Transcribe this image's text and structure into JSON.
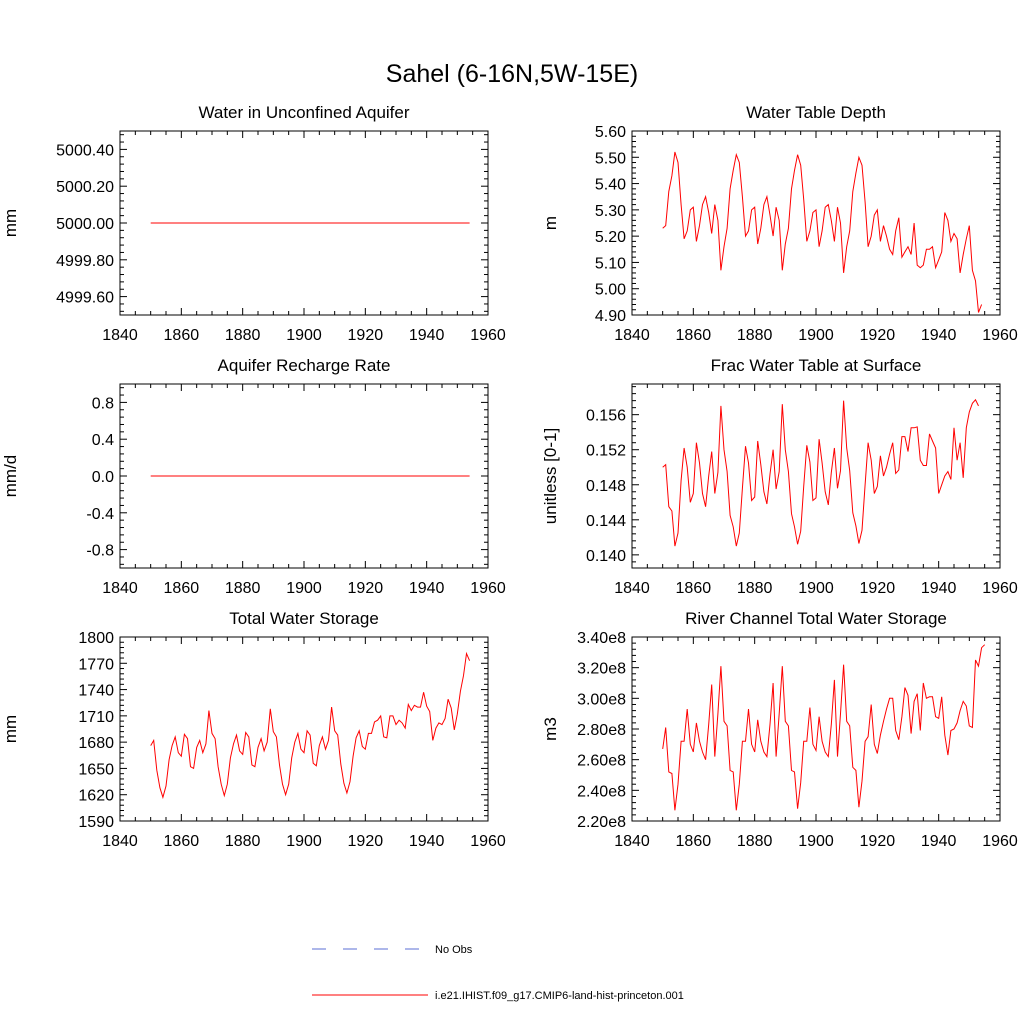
{
  "title": "Sahel (6-16N,5W-15E)",
  "colors": {
    "model": "#ff0000",
    "obs": "#5b6fd6",
    "axis": "#000000"
  },
  "legend": {
    "placement": "bottom-center",
    "items": [
      {
        "label": "No Obs",
        "style": "dashed",
        "color": "#5b6fd6"
      },
      {
        "label": "i.e21.IHIST.f09_g17.CMIP6-land-hist-princeton.001",
        "style": "solid",
        "color": "#ff0000"
      }
    ]
  },
  "chart_data": [
    {
      "type": "line",
      "title": "Water in Unconfined Aquifer",
      "ylabel": "mm",
      "xlabel": "",
      "xlim": [
        1840,
        1960
      ],
      "xticks": [
        1840,
        1860,
        1880,
        1900,
        1920,
        1940,
        1960
      ],
      "xtick_labels": [
        "1840",
        "1860",
        "1880",
        "1900",
        "1920",
        "1940",
        "1960"
      ],
      "ylim": [
        4999.5,
        5000.5
      ],
      "yticks": [
        4999.6,
        4999.8,
        5000.0,
        5000.2,
        5000.4
      ],
      "ytick_labels": [
        "4999.60",
        "4999.80",
        "5000.00",
        "5000.20",
        "5000.40"
      ],
      "series": [
        {
          "start_year": 1850,
          "values": [
            5000.0,
            5000.0
          ],
          "end_year": 1954
        }
      ]
    },
    {
      "type": "line",
      "title": "Water Table Depth",
      "ylabel": "m",
      "xlabel": "",
      "xlim": [
        1840,
        1960
      ],
      "xticks": [
        1840,
        1860,
        1880,
        1900,
        1920,
        1940,
        1960
      ],
      "xtick_labels": [
        "1840",
        "1860",
        "1880",
        "1900",
        "1920",
        "1940",
        "1960"
      ],
      "ylim": [
        4.9,
        5.6
      ],
      "yticks": [
        4.9,
        5.0,
        5.1,
        5.2,
        5.3,
        5.4,
        5.5,
        5.6
      ],
      "ytick_labels": [
        "4.90",
        "5.00",
        "5.10",
        "5.20",
        "5.30",
        "5.40",
        "5.50",
        "5.60"
      ],
      "series": [
        {
          "start_year": 1850,
          "values": [
            5.23,
            5.24,
            5.37,
            5.43,
            5.52,
            5.48,
            5.32,
            5.19,
            5.22,
            5.3,
            5.31,
            5.18,
            5.24,
            5.32,
            5.35,
            5.29,
            5.21,
            5.32,
            5.26,
            5.07,
            5.16,
            5.23,
            5.38,
            5.45,
            5.51,
            5.48,
            5.35,
            5.2,
            5.22,
            5.3,
            5.31,
            5.17,
            5.23,
            5.32,
            5.35,
            5.28,
            5.2,
            5.31,
            5.26,
            5.07,
            5.17,
            5.23,
            5.38,
            5.45,
            5.51,
            5.47,
            5.34,
            5.18,
            5.22,
            5.29,
            5.3,
            5.16,
            5.22,
            5.31,
            5.32,
            5.26,
            5.18,
            5.31,
            5.25,
            5.06,
            5.16,
            5.22,
            5.37,
            5.44,
            5.5,
            5.47,
            5.33,
            5.16,
            5.2,
            5.28,
            5.3,
            5.18,
            5.24,
            5.2,
            5.15,
            5.13,
            5.22,
            5.27,
            5.12,
            5.14,
            5.16,
            5.13,
            5.25,
            5.09,
            5.08,
            5.09,
            5.15,
            5.15,
            5.16,
            5.08,
            5.11,
            5.14,
            5.29,
            5.26,
            5.18,
            5.21,
            5.19,
            5.06,
            5.13,
            5.19,
            5.24,
            5.07,
            5.03,
            4.91,
            4.94
          ]
        }
      ]
    },
    {
      "type": "line",
      "title": "Aquifer Recharge Rate",
      "ylabel": "mm/d",
      "xlabel": "",
      "xlim": [
        1840,
        1960
      ],
      "xticks": [
        1840,
        1860,
        1880,
        1900,
        1920,
        1940,
        1960
      ],
      "xtick_labels": [
        "1840",
        "1860",
        "1880",
        "1900",
        "1920",
        "1940",
        "1960"
      ],
      "ylim": [
        -1.0,
        1.0
      ],
      "yticks": [
        -0.8,
        -0.4,
        0.0,
        0.4,
        0.8
      ],
      "ytick_labels": [
        "-0.8",
        "-0.4",
        "0.0",
        "0.4",
        "0.8"
      ],
      "series": [
        {
          "start_year": 1850,
          "values": [
            0.0,
            0.0
          ],
          "end_year": 1954
        }
      ]
    },
    {
      "type": "line",
      "title": "Frac Water Table at Surface",
      "ylabel": "unitless [0-1]",
      "xlabel": "",
      "xlim": [
        1840,
        1960
      ],
      "xticks": [
        1840,
        1860,
        1880,
        1900,
        1920,
        1940,
        1960
      ],
      "xtick_labels": [
        "1840",
        "1860",
        "1880",
        "1900",
        "1920",
        "1940",
        "1960"
      ],
      "ylim": [
        0.1385,
        0.1595
      ],
      "yticks": [
        0.14,
        0.144,
        0.148,
        0.152,
        0.156
      ],
      "ytick_labels": [
        "0.140",
        "0.144",
        "0.148",
        "0.152",
        "0.156"
      ],
      "series": [
        {
          "start_year": 1850,
          "values": [
            0.15,
            0.1503,
            0.1455,
            0.145,
            0.141,
            0.1425,
            0.1485,
            0.1522,
            0.15,
            0.146,
            0.147,
            0.1528,
            0.1505,
            0.147,
            0.1455,
            0.149,
            0.1518,
            0.147,
            0.1494,
            0.157,
            0.152,
            0.1495,
            0.1445,
            0.1432,
            0.141,
            0.1425,
            0.1476,
            0.1524,
            0.1505,
            0.1462,
            0.1466,
            0.153,
            0.1503,
            0.1472,
            0.1458,
            0.1492,
            0.152,
            0.1475,
            0.1495,
            0.1572,
            0.152,
            0.1495,
            0.1447,
            0.1432,
            0.1412,
            0.1427,
            0.1478,
            0.1525,
            0.1506,
            0.1462,
            0.1465,
            0.1532,
            0.1505,
            0.1472,
            0.1457,
            0.1494,
            0.1522,
            0.1476,
            0.1496,
            0.1576,
            0.1522,
            0.1496,
            0.1448,
            0.1433,
            0.1413,
            0.1428,
            0.148,
            0.1528,
            0.1508,
            0.147,
            0.1478,
            0.1513,
            0.149,
            0.15,
            0.1515,
            0.1528,
            0.1493,
            0.1497,
            0.1535,
            0.1535,
            0.1518,
            0.1545,
            0.1545,
            0.1546,
            0.1508,
            0.1502,
            0.1502,
            0.1538,
            0.153,
            0.1522,
            0.147,
            0.148,
            0.149,
            0.1495,
            0.1486,
            0.1545,
            0.1508,
            0.1528,
            0.1488,
            0.1545,
            0.1563,
            0.1573,
            0.1577,
            0.157
          ]
        }
      ]
    },
    {
      "type": "line",
      "title": "Total Water Storage",
      "ylabel": "mm",
      "xlabel": "",
      "xlim": [
        1840,
        1960
      ],
      "xticks": [
        1840,
        1860,
        1880,
        1900,
        1920,
        1940,
        1960
      ],
      "xtick_labels": [
        "1840",
        "1860",
        "1880",
        "1900",
        "1920",
        "1940",
        "1960"
      ],
      "ylim": [
        1590,
        1800
      ],
      "yticks": [
        1590,
        1620,
        1650,
        1680,
        1710,
        1740,
        1770,
        1800
      ],
      "ytick_labels": [
        "1590",
        "1620",
        "1650",
        "1680",
        "1710",
        "1740",
        "1770",
        "1800"
      ],
      "series": [
        {
          "start_year": 1850,
          "values": [
            1676,
            1682,
            1648,
            1628,
            1617,
            1630,
            1660,
            1676,
            1686,
            1668,
            1664,
            1689,
            1684,
            1652,
            1650,
            1674,
            1682,
            1668,
            1678,
            1716,
            1690,
            1684,
            1652,
            1632,
            1619,
            1632,
            1662,
            1678,
            1688,
            1670,
            1666,
            1691,
            1686,
            1654,
            1652,
            1674,
            1684,
            1670,
            1680,
            1718,
            1692,
            1686,
            1654,
            1632,
            1620,
            1632,
            1662,
            1680,
            1690,
            1672,
            1668,
            1693,
            1688,
            1656,
            1653,
            1676,
            1686,
            1672,
            1682,
            1720,
            1693,
            1688,
            1655,
            1633,
            1622,
            1635,
            1664,
            1685,
            1693,
            1675,
            1672,
            1690,
            1690,
            1703,
            1705,
            1710,
            1686,
            1685,
            1710,
            1710,
            1700,
            1705,
            1702,
            1696,
            1723,
            1716,
            1722,
            1720,
            1720,
            1737,
            1721,
            1715,
            1682,
            1696,
            1702,
            1700,
            1707,
            1729,
            1719,
            1694,
            1712,
            1738,
            1756,
            1781,
            1773
          ]
        }
      ]
    },
    {
      "type": "line",
      "title": "River Channel Total Water Storage",
      "ylabel": "m3",
      "xlabel": "",
      "xlim": [
        1840,
        1960
      ],
      "xticks": [
        1840,
        1860,
        1880,
        1900,
        1920,
        1940,
        1960
      ],
      "xtick_labels": [
        "1840",
        "1860",
        "1880",
        "1900",
        "1920",
        "1940",
        "1960"
      ],
      "ylim": [
        220000000,
        340000000
      ],
      "yticks": [
        220000000,
        240000000,
        260000000,
        280000000,
        300000000,
        320000000,
        340000000
      ],
      "ytick_labels": [
        "2.20e8",
        "2.40e8",
        "2.60e8",
        "2.80e8",
        "3.00e8",
        "3.20e8",
        "3.40e8"
      ],
      "series": [
        {
          "start_year": 1850,
          "values": [
            267000000,
            281000000,
            252000000,
            251000000,
            227000000,
            244000000,
            272000000,
            272000000,
            293000000,
            270000000,
            265000000,
            284000000,
            272000000,
            265000000,
            260000000,
            283000000,
            309000000,
            262000000,
            290000000,
            321000000,
            285000000,
            282000000,
            253000000,
            252000000,
            227000000,
            244000000,
            272000000,
            272000000,
            293000000,
            270000000,
            265000000,
            286000000,
            272000000,
            265000000,
            262000000,
            283000000,
            310000000,
            262000000,
            290000000,
            321000000,
            285000000,
            282000000,
            253000000,
            252000000,
            228000000,
            245000000,
            272000000,
            272000000,
            294000000,
            270000000,
            266000000,
            288000000,
            272000000,
            265000000,
            262000000,
            283000000,
            312000000,
            262000000,
            290000000,
            322000000,
            285000000,
            282000000,
            255000000,
            253000000,
            229000000,
            246000000,
            272000000,
            275000000,
            296000000,
            270000000,
            264000000,
            276000000,
            285000000,
            293000000,
            300000000,
            300000000,
            279000000,
            273000000,
            288000000,
            307000000,
            302000000,
            277000000,
            298000000,
            303000000,
            279000000,
            310000000,
            300000000,
            301000000,
            301000000,
            288000000,
            287000000,
            301000000,
            276000000,
            263000000,
            279000000,
            280000000,
            284000000,
            292000000,
            298000000,
            295000000,
            282000000,
            281000000,
            325000000,
            321000000,
            333000000,
            335000000
          ]
        }
      ]
    }
  ]
}
